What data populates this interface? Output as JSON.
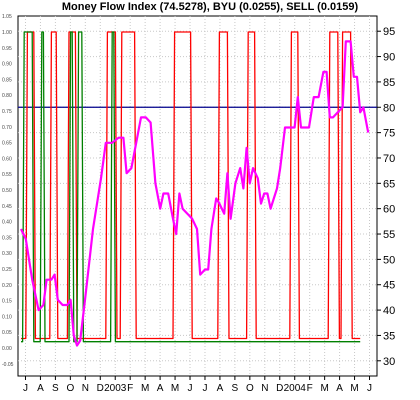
{
  "title": "Money Flow Index (74.5278), BYU (0.0255), SELL (0.0159)",
  "chart_data": {
    "type": "line",
    "title": "Money Flow Index (74.5278), BYU (0.0255), SELL (0.0159)",
    "x_labels": [
      "J",
      "A",
      "S",
      "O",
      "N",
      "D",
      "2003",
      "F",
      "M",
      "A",
      "M",
      "J",
      "J",
      "A",
      "S",
      "O",
      "N",
      "D",
      "2004",
      "F",
      "M",
      "A",
      "M",
      "J"
    ],
    "right_axis": {
      "range": [
        27,
        98
      ],
      "ticks": [
        "95",
        "90",
        "85",
        "80",
        "75",
        "70",
        "65",
        "60",
        "55",
        "50",
        "45",
        "40",
        "35",
        "30"
      ]
    },
    "left_axis": {
      "ticks": [
        "1.05",
        "1.00",
        "0.95",
        "0.90",
        "0.85",
        "0.80",
        "0.75",
        "0.70",
        "0.65",
        "0.60",
        "0.55",
        "0.50",
        "0.45",
        "0.40",
        "0.35",
        "0.30",
        "0.25",
        "0.20",
        "0.15",
        "0.10",
        "0.05",
        "0.00",
        "-0.05"
      ]
    },
    "reference_line": {
      "value": 80,
      "color": "#00008b"
    },
    "grid": true,
    "series": [
      {
        "color": "#ff00ff",
        "axis": "right",
        "points": [
          [
            0,
            56
          ],
          [
            3,
            54
          ],
          [
            7,
            46
          ],
          [
            11,
            40
          ],
          [
            14,
            41
          ],
          [
            16,
            46
          ],
          [
            19,
            46
          ],
          [
            21,
            47
          ],
          [
            23,
            42
          ],
          [
            26,
            41
          ],
          [
            29,
            41
          ],
          [
            31,
            42
          ],
          [
            33,
            35
          ],
          [
            35,
            33
          ],
          [
            37,
            34
          ],
          [
            40,
            42
          ],
          [
            45,
            56
          ],
          [
            50,
            66
          ],
          [
            53,
            73
          ],
          [
            57,
            73
          ],
          [
            61,
            74
          ],
          [
            64,
            74
          ],
          [
            66,
            67
          ],
          [
            69,
            68
          ],
          [
            72,
            73
          ],
          [
            75,
            78
          ],
          [
            78,
            78
          ],
          [
            81,
            77
          ],
          [
            84,
            65
          ],
          [
            87,
            60
          ],
          [
            89,
            63
          ],
          [
            92,
            63
          ],
          [
            95,
            58
          ],
          [
            97,
            55
          ],
          [
            99,
            63
          ],
          [
            101,
            60
          ],
          [
            104,
            59
          ],
          [
            107,
            58
          ],
          [
            110,
            56
          ],
          [
            112,
            47
          ],
          [
            115,
            48
          ],
          [
            117,
            48
          ],
          [
            119,
            56
          ],
          [
            122,
            62
          ],
          [
            124,
            61
          ],
          [
            127,
            59
          ],
          [
            129,
            67
          ],
          [
            131,
            58
          ],
          [
            134,
            65
          ],
          [
            137,
            68
          ],
          [
            139,
            64
          ],
          [
            141,
            72
          ],
          [
            143,
            65
          ],
          [
            145,
            68
          ],
          [
            148,
            66
          ],
          [
            150,
            61
          ],
          [
            152,
            63
          ],
          [
            154,
            63
          ],
          [
            156,
            60
          ],
          [
            158,
            62
          ],
          [
            160,
            64
          ],
          [
            162,
            68
          ],
          [
            165,
            76
          ],
          [
            168,
            76
          ],
          [
            171,
            76
          ],
          [
            173,
            82
          ],
          [
            175,
            76
          ],
          [
            178,
            76
          ],
          [
            180,
            76
          ],
          [
            183,
            82
          ],
          [
            186,
            82
          ],
          [
            189,
            87
          ],
          [
            191,
            87
          ],
          [
            193,
            78
          ],
          [
            195,
            78
          ],
          [
            198,
            79
          ],
          [
            201,
            80
          ],
          [
            203,
            93
          ],
          [
            206,
            93
          ],
          [
            208,
            86
          ],
          [
            210,
            86
          ],
          [
            212,
            79
          ],
          [
            214,
            80
          ],
          [
            217,
            75
          ]
        ]
      },
      {
        "color": "#ff0000",
        "axis": "left",
        "points": [
          [
            0,
            0.03
          ],
          [
            3,
            0.03
          ],
          [
            4,
            1.0
          ],
          [
            8,
            1.0
          ],
          [
            9,
            0.03
          ],
          [
            18,
            0.03
          ],
          [
            19,
            1.0
          ],
          [
            22,
            1.0
          ],
          [
            23,
            0.03
          ],
          [
            29,
            0.03
          ],
          [
            30,
            1.0
          ],
          [
            34,
            1.0
          ],
          [
            35,
            0.03
          ],
          [
            53,
            0.03
          ],
          [
            54,
            1.0
          ],
          [
            59,
            1.0
          ],
          [
            60,
            0.03
          ],
          [
            62,
            0.03
          ],
          [
            63,
            1.0
          ],
          [
            71,
            1.0
          ],
          [
            72,
            0.03
          ],
          [
            95,
            0.03
          ],
          [
            96,
            1.0
          ],
          [
            106,
            1.0
          ],
          [
            107,
            0.03
          ],
          [
            123,
            0.03
          ],
          [
            124,
            1.0
          ],
          [
            129,
            1.0
          ],
          [
            130,
            0.03
          ],
          [
            141,
            0.03
          ],
          [
            142,
            1.0
          ],
          [
            146,
            1.0
          ],
          [
            147,
            0.03
          ],
          [
            168,
            0.03
          ],
          [
            169,
            1.0
          ],
          [
            173,
            1.0
          ],
          [
            174,
            0.03
          ],
          [
            192,
            0.03
          ],
          [
            193,
            1.0
          ],
          [
            198,
            1.0
          ],
          [
            199,
            0.03
          ],
          [
            200,
            0.03
          ],
          [
            201,
            1.0
          ],
          [
            206,
            1.0
          ],
          [
            207,
            0.03
          ],
          [
            212,
            0.03
          ]
        ]
      },
      {
        "color": "#008000",
        "axis": "left",
        "points": [
          [
            0,
            0.02
          ],
          [
            1,
            0.02
          ],
          [
            2,
            1.0
          ],
          [
            7,
            1.0
          ],
          [
            8,
            0.02
          ],
          [
            12,
            0.02
          ],
          [
            13,
            1.0
          ],
          [
            14,
            1.0
          ],
          [
            15,
            0.02
          ],
          [
            30,
            0.02
          ],
          [
            31,
            1.0
          ],
          [
            32,
            1.0
          ],
          [
            33,
            0.02
          ],
          [
            35,
            0.02
          ],
          [
            36,
            1.0
          ],
          [
            38,
            1.0
          ],
          [
            39,
            0.02
          ],
          [
            56,
            0.02
          ],
          [
            57,
            1.0
          ],
          [
            58,
            1.0
          ],
          [
            59,
            0.02
          ],
          [
            212,
            0.02
          ]
        ]
      }
    ]
  }
}
